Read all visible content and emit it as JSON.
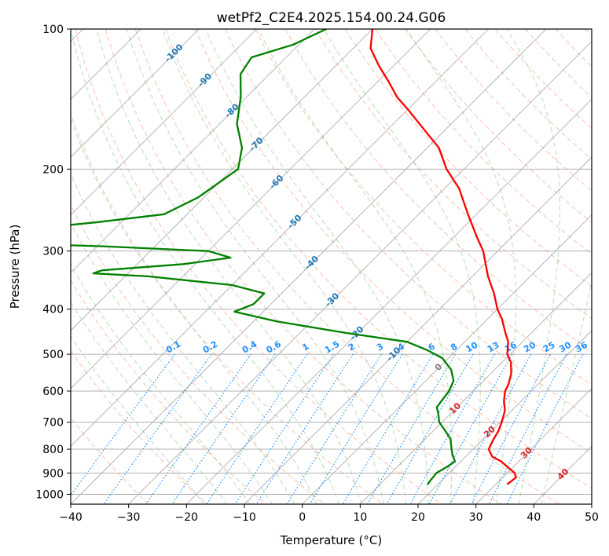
{
  "chart_data": {
    "type": "line",
    "subtype": "skew-T log-P diagram",
    "title": "wetPf2_C2E4.2025.154.00.24.G06",
    "xlabel": "Temperature (°C)",
    "ylabel": "Pressure (hPa)",
    "xlim": [
      -40,
      50
    ],
    "ylim": [
      1050,
      100
    ],
    "y_scale": "log",
    "x_ticks": [
      -40,
      -30,
      -20,
      -10,
      0,
      10,
      20,
      30,
      40,
      50
    ],
    "y_ticks": [
      100,
      200,
      300,
      400,
      500,
      600,
      700,
      800,
      900,
      1000
    ],
    "grid": true,
    "series": [
      {
        "color": "#ff0000",
        "points": [
          [
            950,
            32.0
          ],
          [
            920,
            32.3
          ],
          [
            900,
            31.3
          ],
          [
            880,
            29.6
          ],
          [
            850,
            27.0
          ],
          [
            830,
            24.6
          ],
          [
            800,
            22.7
          ],
          [
            770,
            22.0
          ],
          [
            730,
            21.2
          ],
          [
            700,
            20.3
          ],
          [
            660,
            18.8
          ],
          [
            630,
            17.0
          ],
          [
            600,
            15.5
          ],
          [
            580,
            14.9
          ],
          [
            550,
            13.5
          ],
          [
            520,
            11.5
          ],
          [
            500,
            9.5
          ],
          [
            470,
            7.5
          ],
          [
            450,
            5.5
          ],
          [
            420,
            2.5
          ],
          [
            400,
            0.0
          ],
          [
            370,
            -3.3
          ],
          [
            340,
            -7.3
          ],
          [
            300,
            -12.5
          ],
          [
            280,
            -16.0
          ],
          [
            250,
            -21.5
          ],
          [
            220,
            -27.5
          ],
          [
            200,
            -33.0
          ],
          [
            180,
            -38.0
          ],
          [
            165,
            -43.5
          ],
          [
            150,
            -49.5
          ],
          [
            140,
            -54.0
          ],
          [
            130,
            -58.0
          ],
          [
            120,
            -62.5
          ],
          [
            110,
            -67.0
          ],
          [
            100,
            -70.0
          ]
        ]
      },
      {
        "color": "#008000",
        "points": [
          [
            950,
            18.2
          ],
          [
            930,
            18.0
          ],
          [
            900,
            17.8
          ],
          [
            870,
            18.6
          ],
          [
            850,
            19.0
          ],
          [
            820,
            17.3
          ],
          [
            800,
            16.3
          ],
          [
            760,
            14.3
          ],
          [
            730,
            12.0
          ],
          [
            700,
            9.5
          ],
          [
            670,
            7.8
          ],
          [
            650,
            6.5
          ],
          [
            630,
            6.2
          ],
          [
            600,
            5.8
          ],
          [
            570,
            4.8
          ],
          [
            540,
            2.5
          ],
          [
            510,
            -1.0
          ],
          [
            490,
            -5.0
          ],
          [
            470,
            -10.0
          ],
          [
            450,
            -22.0
          ],
          [
            425,
            -36.0
          ],
          [
            405,
            -45.0
          ],
          [
            390,
            -43.0
          ],
          [
            370,
            -43.0
          ],
          [
            355,
            -50.0
          ],
          [
            340,
            -66.0
          ],
          [
            335,
            -76.0
          ],
          [
            330,
            -75.0
          ],
          [
            320,
            -62.0
          ],
          [
            310,
            -55.0
          ],
          [
            300,
            -60.0
          ],
          [
            293,
            -79.0
          ],
          [
            290,
            -92.0
          ],
          [
            280,
            -96.0
          ],
          [
            270,
            -96.0
          ],
          [
            260,
            -84.0
          ],
          [
            250,
            -74.0
          ],
          [
            230,
            -71.0
          ],
          [
            200,
            -69.0
          ],
          [
            180,
            -72.0
          ],
          [
            160,
            -77.0
          ],
          [
            140,
            -81.0
          ],
          [
            125,
            -85.0
          ],
          [
            115,
            -86.0
          ],
          [
            108,
            -81.0
          ],
          [
            100,
            -78.0
          ]
        ]
      }
    ],
    "isotherms_deg_c": [
      -100,
      -90,
      -80,
      -70,
      -60,
      -50,
      -40,
      -30,
      -20,
      -10,
      0
    ],
    "mixing_ratio_labels": [
      "0.1",
      "0.2",
      "0.4",
      "0.6",
      "1",
      "1.5",
      "2",
      "3",
      "4",
      "6",
      "8",
      "10",
      "13",
      "16",
      "20",
      "25",
      "30",
      "36"
    ],
    "mixing_ratio_values": [
      0.1,
      0.2,
      0.4,
      0.6,
      1,
      1.5,
      2,
      3,
      4,
      6,
      8,
      10,
      13,
      16,
      20,
      25,
      30,
      36
    ],
    "isotherm_labels": [
      "-100",
      "-90",
      "-80",
      "-70",
      "-60",
      "-50",
      "-40",
      "-30",
      "-20",
      "-10"
    ],
    "warm_labels": [
      "0",
      "10",
      "20",
      "30",
      "40"
    ],
    "colors": {
      "temperature": "#ff0000",
      "dewpoint": "#008000",
      "isobar_grid": "#b0b0b0",
      "isotherm": "#808080",
      "dry_adiabat": "#ff8c69",
      "moist_adiabat": "#7fbf7f",
      "mixing_ratio": "#1e90ff",
      "isotherm_label": "#1f77b4",
      "warm_label": "#d62728",
      "zero_label": "#808080"
    }
  }
}
